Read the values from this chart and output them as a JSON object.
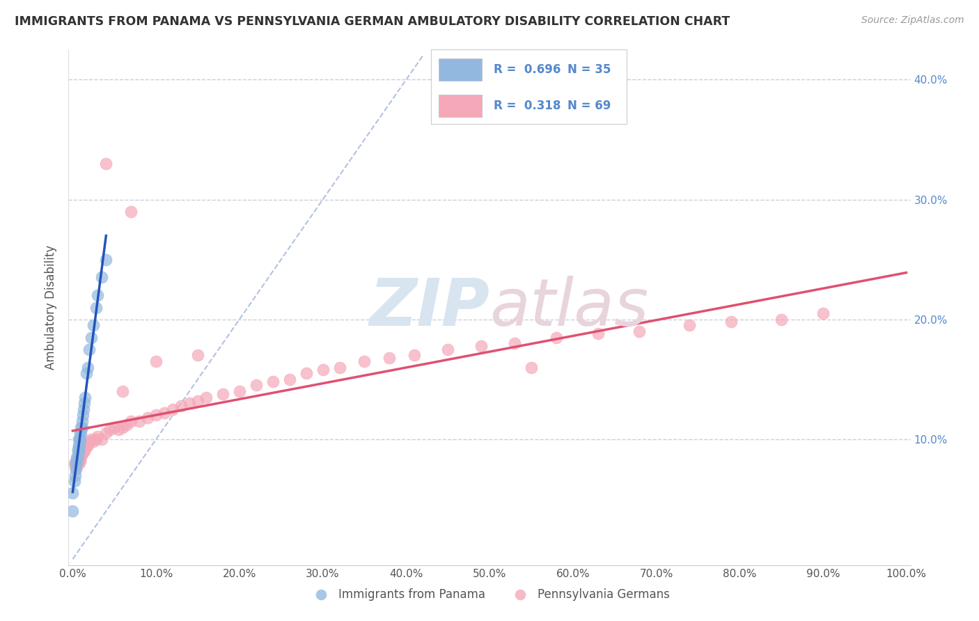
{
  "title": "IMMIGRANTS FROM PANAMA VS PENNSYLVANIA GERMAN AMBULATORY DISABILITY CORRELATION CHART",
  "source": "Source: ZipAtlas.com",
  "ylabel": "Ambulatory Disability",
  "watermark_zip": "ZIP",
  "watermark_atlas": "atlas",
  "legend_labels": [
    "Immigrants from Panama",
    "Pennsylvania Germans"
  ],
  "r_panama": "0.696",
  "n_panama": "35",
  "r_penn": "0.318",
  "n_penn": "69",
  "blue_scatter_color": "#93B8E0",
  "pink_scatter_color": "#F4A8B8",
  "blue_line_color": "#2255BB",
  "pink_line_color": "#E05070",
  "dashed_line_color": "#AABBDD",
  "background_color": "#FFFFFF",
  "grid_color": "#CCCCDD",
  "right_tick_color": "#5588CC",
  "xlim": [
    -0.005,
    1.005
  ],
  "ylim": [
    -0.005,
    0.425
  ],
  "xticks": [
    0.0,
    0.1,
    0.2,
    0.3,
    0.4,
    0.5,
    0.6,
    0.7,
    0.8,
    0.9,
    1.0
  ],
  "yticks": [
    0.0,
    0.1,
    0.2,
    0.3,
    0.4
  ],
  "xticklabels": [
    "0.0%",
    "10.0%",
    "20.0%",
    "30.0%",
    "40.0%",
    "50.0%",
    "60.0%",
    "70.0%",
    "80.0%",
    "90.0%",
    "100.0%"
  ],
  "yticklabels_right": [
    "",
    "10.0%",
    "20.0%",
    "30.0%",
    "40.0%"
  ],
  "panama_x": [
    0.002,
    0.003,
    0.004,
    0.004,
    0.005,
    0.005,
    0.006,
    0.006,
    0.006,
    0.007,
    0.007,
    0.007,
    0.008,
    0.008,
    0.009,
    0.009,
    0.01,
    0.01,
    0.011,
    0.011,
    0.012,
    0.013,
    0.014,
    0.015,
    0.016,
    0.018,
    0.02,
    0.022,
    0.025,
    0.028,
    0.03,
    0.035,
    0.04,
    0.0,
    0.0
  ],
  "panama_y": [
    0.065,
    0.07,
    0.075,
    0.08,
    0.08,
    0.085,
    0.085,
    0.09,
    0.092,
    0.09,
    0.095,
    0.1,
    0.095,
    0.1,
    0.1,
    0.105,
    0.105,
    0.11,
    0.11,
    0.115,
    0.12,
    0.125,
    0.13,
    0.135,
    0.155,
    0.16,
    0.175,
    0.185,
    0.195,
    0.21,
    0.22,
    0.235,
    0.25,
    0.04,
    0.055
  ],
  "penn_x": [
    0.002,
    0.003,
    0.004,
    0.005,
    0.005,
    0.006,
    0.006,
    0.007,
    0.008,
    0.008,
    0.009,
    0.01,
    0.01,
    0.011,
    0.012,
    0.013,
    0.014,
    0.015,
    0.016,
    0.018,
    0.02,
    0.022,
    0.025,
    0.028,
    0.03,
    0.035,
    0.04,
    0.045,
    0.05,
    0.055,
    0.06,
    0.065,
    0.07,
    0.08,
    0.09,
    0.1,
    0.11,
    0.12,
    0.13,
    0.14,
    0.15,
    0.16,
    0.18,
    0.2,
    0.22,
    0.24,
    0.26,
    0.28,
    0.3,
    0.32,
    0.35,
    0.38,
    0.41,
    0.45,
    0.49,
    0.53,
    0.58,
    0.63,
    0.68,
    0.74,
    0.79,
    0.85,
    0.9,
    0.1,
    0.15,
    0.07,
    0.04,
    0.06,
    0.55
  ],
  "penn_y": [
    0.08,
    0.078,
    0.076,
    0.078,
    0.082,
    0.08,
    0.085,
    0.082,
    0.08,
    0.085,
    0.082,
    0.085,
    0.09,
    0.088,
    0.09,
    0.092,
    0.09,
    0.092,
    0.095,
    0.095,
    0.098,
    0.1,
    0.098,
    0.1,
    0.102,
    0.1,
    0.105,
    0.108,
    0.11,
    0.108,
    0.11,
    0.112,
    0.115,
    0.115,
    0.118,
    0.12,
    0.122,
    0.125,
    0.128,
    0.13,
    0.132,
    0.135,
    0.138,
    0.14,
    0.145,
    0.148,
    0.15,
    0.155,
    0.158,
    0.16,
    0.165,
    0.168,
    0.17,
    0.175,
    0.178,
    0.18,
    0.185,
    0.188,
    0.19,
    0.195,
    0.198,
    0.2,
    0.205,
    0.165,
    0.17,
    0.29,
    0.33,
    0.14,
    0.16
  ]
}
